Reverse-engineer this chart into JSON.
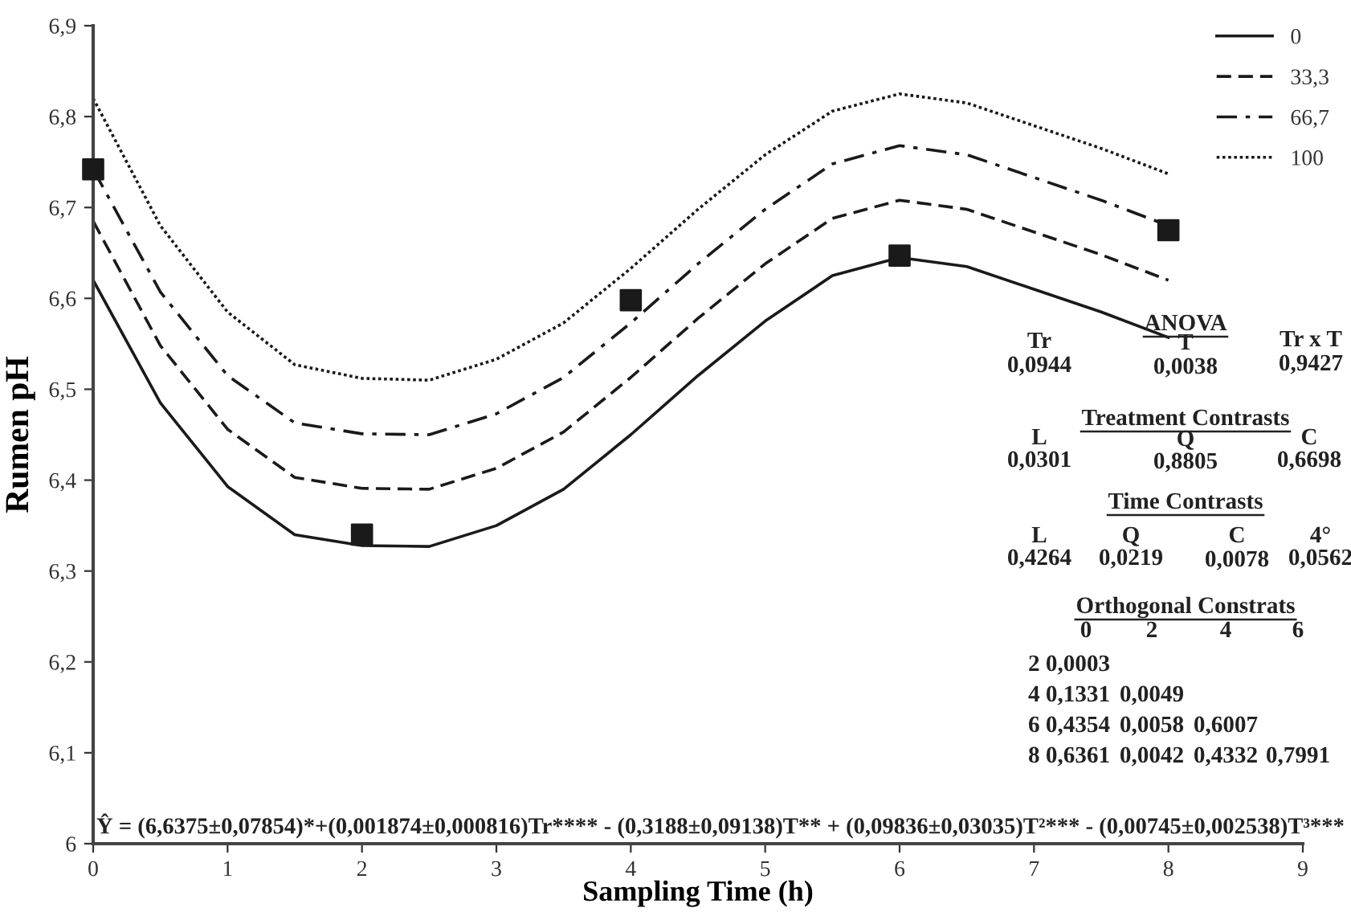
{
  "chart_data": {
    "type": "line",
    "xlabel": "Sampling Time (h)",
    "ylabel": "Rumen pH",
    "xlim": [
      0,
      9
    ],
    "xticks": [
      0,
      1,
      2,
      3,
      4,
      5,
      6,
      7,
      8,
      9
    ],
    "ylim": [
      6,
      6.9
    ],
    "yticks": [
      6,
      {
        "value": 6.1,
        "label": "6,1"
      },
      {
        "value": 6.2,
        "label": "6,2"
      },
      {
        "value": 6.3,
        "label": "6,3"
      },
      {
        "value": 6.4,
        "label": "6,4"
      },
      {
        "value": 6.5,
        "label": "6,5"
      },
      {
        "value": 6.6,
        "label": "6,6"
      },
      {
        "value": 6.7,
        "label": "6,7"
      },
      {
        "value": 6.8,
        "label": "6,8"
      },
      {
        "value": 6.9,
        "label": "6,9"
      }
    ],
    "x": [
      0,
      0.5,
      1,
      1.5,
      2,
      2.5,
      3,
      3.5,
      4,
      4.5,
      5,
      5.5,
      6,
      6.5,
      7,
      7.5,
      8
    ],
    "series": [
      {
        "name": "0",
        "color": "#1a1a1a",
        "line_style": "solid",
        "marker": "none",
        "values": [
          6.62,
          6.485,
          6.393,
          6.34,
          6.328,
          6.327,
          6.35,
          6.39,
          6.45,
          6.515,
          6.575,
          6.625,
          6.645,
          6.635,
          6.61,
          6.585,
          6.557
        ]
      },
      {
        "name": "33,3",
        "color": "#1a1a1a",
        "line_style": "dashed",
        "marker": "none",
        "values": [
          6.685,
          6.548,
          6.456,
          6.403,
          6.391,
          6.39,
          6.413,
          6.453,
          6.513,
          6.578,
          6.638,
          6.688,
          6.708,
          6.698,
          6.673,
          6.648,
          6.62
        ]
      },
      {
        "name": "66,7",
        "color": "#1a1a1a",
        "line_style": "dashdot",
        "marker": "none",
        "values": [
          6.742,
          6.607,
          6.515,
          6.463,
          6.451,
          6.45,
          6.473,
          6.513,
          6.573,
          6.638,
          6.698,
          6.748,
          6.768,
          6.758,
          6.733,
          6.708,
          6.68
        ]
      },
      {
        "name": "100",
        "color": "#1a1a1a",
        "line_style": "dotted",
        "marker": "none",
        "values": [
          6.82,
          6.68,
          6.585,
          6.527,
          6.512,
          6.51,
          6.533,
          6.573,
          6.633,
          6.698,
          6.758,
          6.806,
          6.825,
          6.815,
          6.79,
          6.765,
          6.737
        ]
      },
      {
        "type": "scatter",
        "color": "#1a1a1a",
        "marker": "square",
        "x": [
          0,
          2,
          4,
          6,
          8
        ],
        "values": [
          6.742,
          6.34,
          6.598,
          6.647,
          6.675
        ]
      }
    ],
    "legend": "top right",
    "grid": false,
    "annotations": [
      "Ŷ = (6,6375±0,07854)*+(0,001874±0,000816)Tr**** - (0,3188±0,09138)T** + (0,09836±0,03035)T²*** - (0,00745±0,002538)T³***",
      "ANOVA",
      "Tr",
      "0,0944",
      "T",
      "0,0038",
      "Tr x T",
      "0,9427",
      "Treatment Contrasts",
      "L",
      "0,0301",
      "Q",
      "0,8805",
      "C",
      "0,6698",
      "Time Contrasts",
      "L",
      "0,4264",
      "Q",
      "0,0219",
      "C",
      "0,0078",
      "4°",
      "0,0562",
      "Orthogonal Constrats",
      "0",
      "2",
      "4",
      "6",
      "2 0,0003",
      "4 0,1331",
      "0,0049",
      "6 0,4354",
      "0,0058",
      "0,6007",
      "8 0,6361",
      "0,0042",
      "0,4332",
      "0,7991"
    ]
  }
}
